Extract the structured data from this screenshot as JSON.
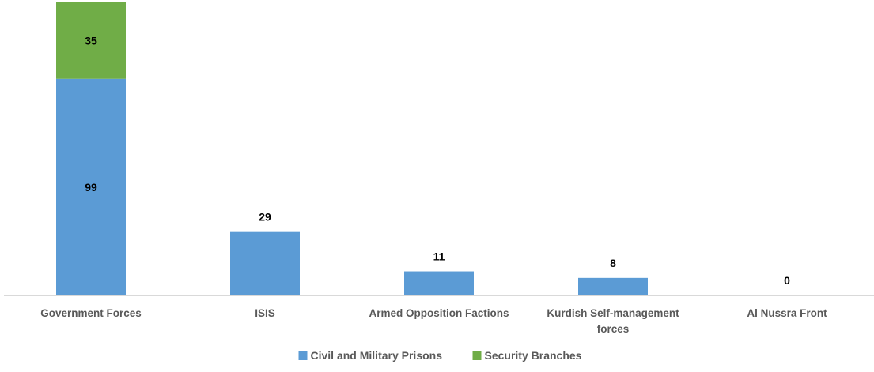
{
  "chart_data": {
    "type": "bar",
    "stacked": true,
    "categories": [
      [
        "Government Forces"
      ],
      [
        "ISIS"
      ],
      [
        "Armed Opposition Factions"
      ],
      [
        "Kurdish Self-management",
        "forces"
      ],
      [
        "Al Nussra Front"
      ]
    ],
    "series": [
      {
        "name": "Civil and Military Prisons",
        "color": "#5b9bd5",
        "values": [
          99,
          29,
          11,
          8,
          0
        ]
      },
      {
        "name": "Security Branches",
        "color": "#70ad47",
        "values": [
          35,
          null,
          null,
          null,
          null
        ]
      }
    ],
    "data_labels": [
      [
        "99",
        "29",
        "11",
        "8",
        "0"
      ],
      [
        "35",
        "",
        "",
        "",
        ""
      ]
    ],
    "ylim": [
      0,
      134
    ],
    "legend_position": "bottom",
    "grid": false
  }
}
